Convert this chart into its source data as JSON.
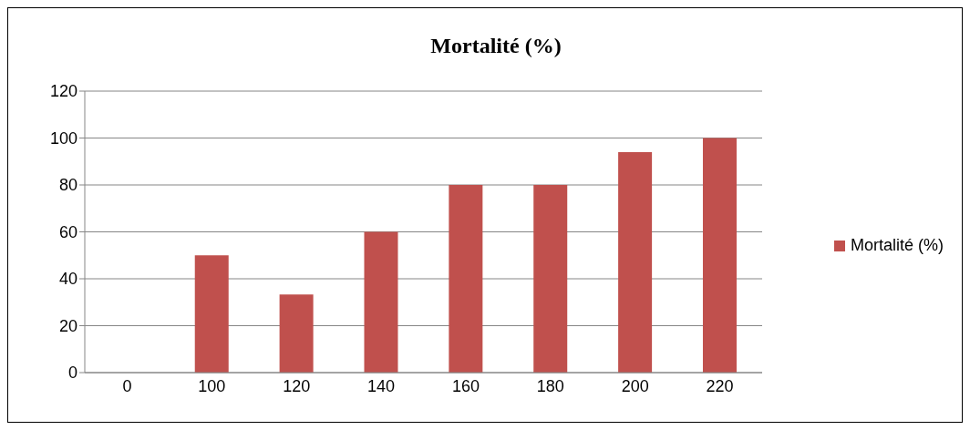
{
  "chart_data": {
    "type": "bar",
    "title": "Mortalité (%)",
    "categories": [
      "0",
      "100",
      "120",
      "140",
      "160",
      "180",
      "200",
      "220"
    ],
    "series": [
      {
        "name": "Mortalité (%)",
        "color": "#c0504d",
        "values": [
          0,
          50,
          33.3,
          60,
          80,
          80,
          94,
          100
        ]
      }
    ],
    "ylim": [
      0,
      120
    ],
    "yticks": [
      0,
      20,
      40,
      60,
      80,
      100,
      120
    ],
    "grid": "y",
    "legend": "right"
  }
}
